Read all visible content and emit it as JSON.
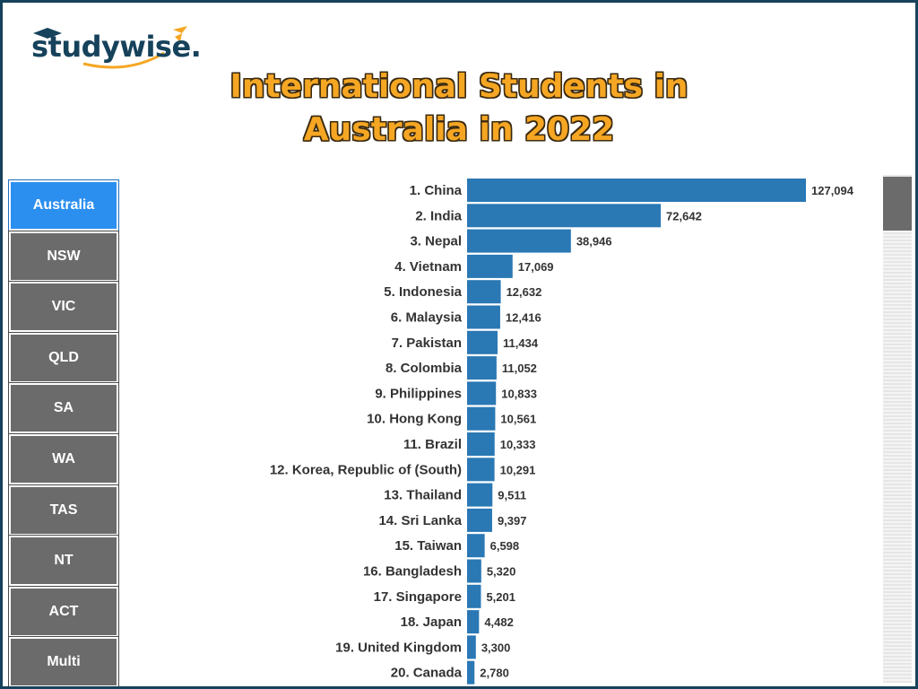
{
  "brand": {
    "name": "studywise.",
    "accent": "#f5a623",
    "primary": "#16425b"
  },
  "title_lines": [
    "International Students in",
    "Australia in 2022"
  ],
  "sidebar": {
    "items": [
      {
        "label": "Australia",
        "active": true
      },
      {
        "label": "NSW",
        "active": false
      },
      {
        "label": "VIC",
        "active": false
      },
      {
        "label": "QLD",
        "active": false
      },
      {
        "label": "SA",
        "active": false
      },
      {
        "label": "WA",
        "active": false
      },
      {
        "label": "TAS",
        "active": false
      },
      {
        "label": "NT",
        "active": false
      },
      {
        "label": "ACT",
        "active": false
      },
      {
        "label": "Multi",
        "active": false
      }
    ]
  },
  "colors": {
    "bar": "#2a78b4",
    "active_tab": "#2b8ff0",
    "tab": "#6b6b6b"
  },
  "chart_data": {
    "type": "bar",
    "orientation": "horizontal",
    "title": "International Students in Australia in 2022",
    "categories": [
      "1. China",
      "2. India",
      "3. Nepal",
      "4. Vietnam",
      "5. Indonesia",
      "6. Malaysia",
      "7. Pakistan",
      "8. Colombia",
      "9. Philippines",
      "10. Hong Kong",
      "11. Brazil",
      "12. Korea, Republic of (South)",
      "13. Thailand",
      "14. Sri Lanka",
      "15. Taiwan",
      "16. Bangladesh",
      "17. Singapore",
      "18. Japan",
      "19. United Kingdom",
      "20. Canada"
    ],
    "values": [
      127094,
      72642,
      38946,
      17069,
      12632,
      12416,
      11434,
      11052,
      10833,
      10561,
      10333,
      10291,
      9511,
      9397,
      6598,
      5320,
      5201,
      4482,
      3300,
      2780
    ],
    "value_labels": [
      "127,094",
      "72,642",
      "38,946",
      "17,069",
      "12,632",
      "12,416",
      "11,434",
      "11,052",
      "10,833",
      "10,561",
      "10,333",
      "10,291",
      "9,511",
      "9,397",
      "6,598",
      "5,320",
      "5,201",
      "4,482",
      "3,300",
      "2,780"
    ],
    "grid": false,
    "data_labels": true
  }
}
